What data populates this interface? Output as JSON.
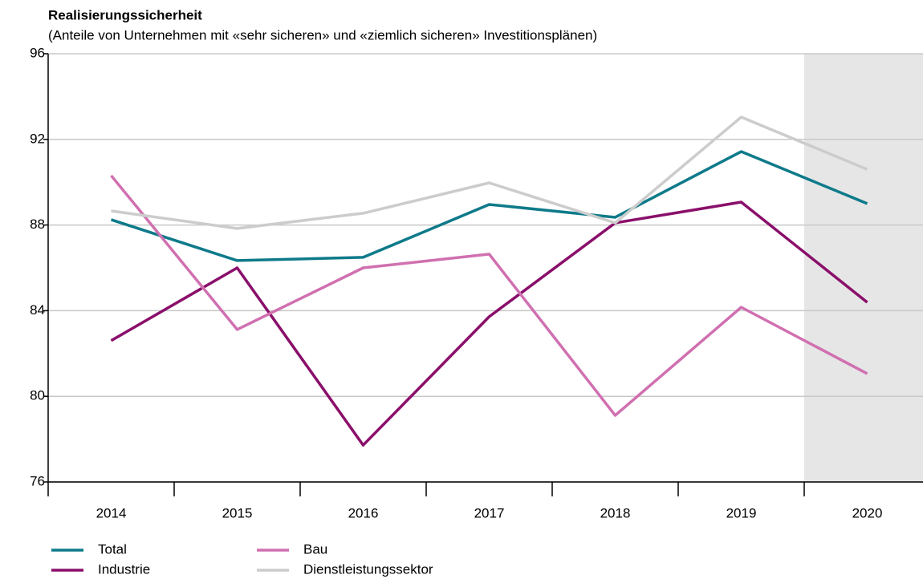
{
  "chart_data": {
    "type": "line",
    "title": "Realisierungssicherheit",
    "subtitle": "(Anteile von Unternehmen mit «sehr sicheren» und «ziemlich sicheren» Investitionsplänen)",
    "categories": [
      "2014",
      "2015",
      "2016",
      "2017",
      "2018",
      "2019",
      "2020"
    ],
    "highlight_categories": [
      "2020"
    ],
    "series": [
      {
        "name": "Total",
        "color": "#0e7a8a",
        "values": [
          88.25,
          86.34,
          86.49,
          88.96,
          88.36,
          91.43,
          89.0
        ]
      },
      {
        "name": "Industrie",
        "color": "#8a0f6a",
        "values": [
          82.6,
          86.0,
          77.72,
          83.72,
          88.1,
          89.07,
          84.39
        ]
      },
      {
        "name": "Bau",
        "color": "#d070b0",
        "values": [
          90.31,
          83.12,
          86.0,
          86.64,
          79.11,
          84.16,
          81.06
        ]
      },
      {
        "name": "Dienstleistungssektor",
        "color": "#cccccc",
        "values": [
          88.66,
          87.84,
          88.55,
          89.97,
          88.1,
          93.04,
          90.6
        ]
      }
    ],
    "ylim": [
      76,
      96
    ],
    "yticks": [
      76,
      80,
      84,
      88,
      92,
      96
    ],
    "grid": true
  }
}
